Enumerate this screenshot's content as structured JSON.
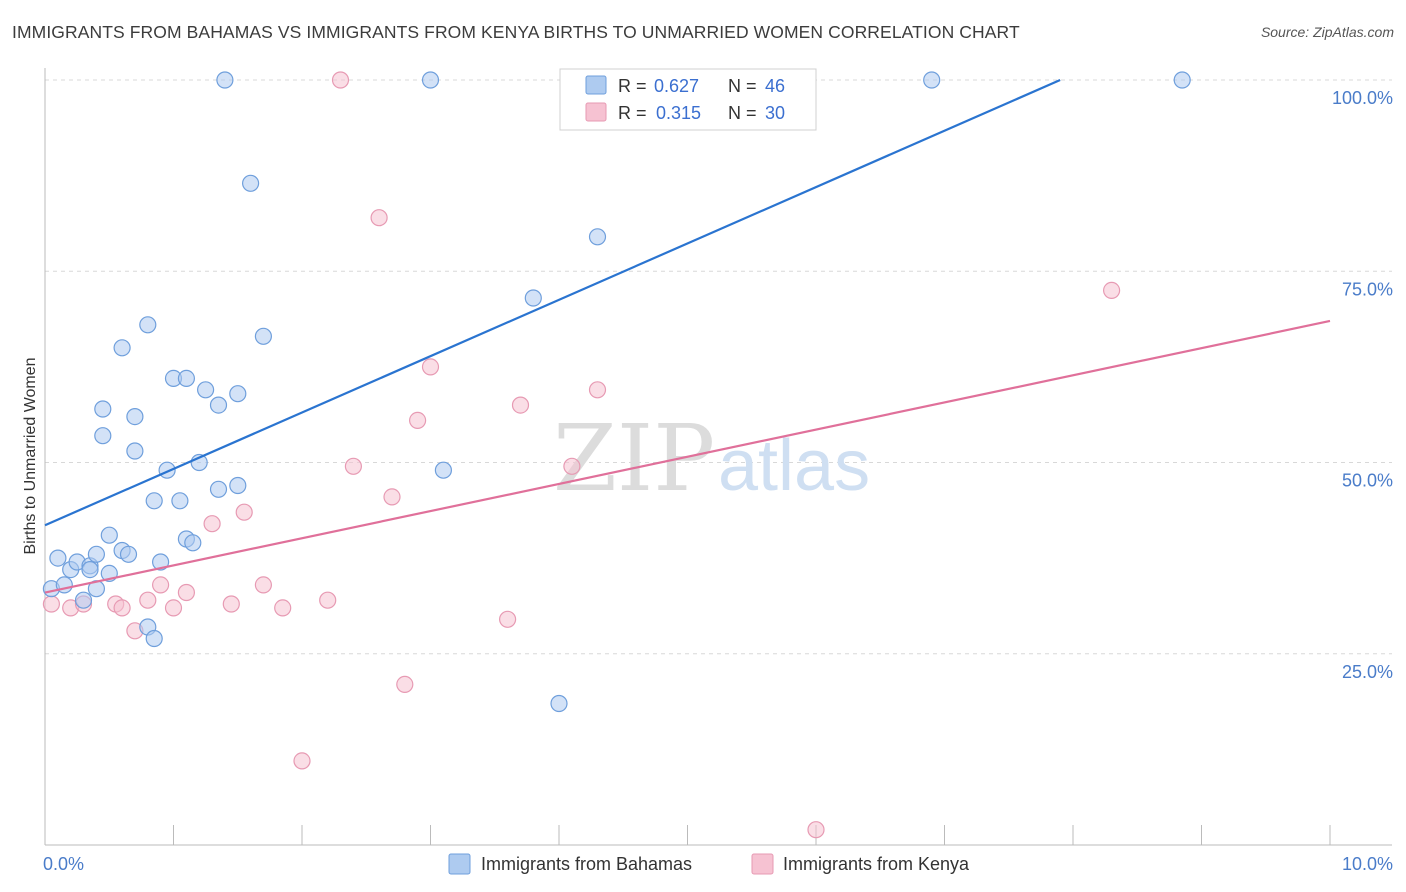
{
  "title": "IMMIGRANTS FROM BAHAMAS VS IMMIGRANTS FROM KENYA BIRTHS TO UNMARRIED WOMEN CORRELATION CHART",
  "source": "Source: ZipAtlas.com",
  "watermark": {
    "zip": "ZIP",
    "atlas": "atlas"
  },
  "colors": {
    "blue_fill": "#aecbf0",
    "blue_stroke": "#6f9fdc",
    "blue_line": "#2a74d0",
    "pink_fill": "#f6c2d2",
    "pink_stroke": "#e79ab3",
    "pink_line": "#e0709a",
    "grid": "#d8d8d8",
    "tick_text": "#4a7cc9"
  },
  "legend": {
    "rows": [
      {
        "r_label": "R =",
        "r_value": "0.627",
        "n_label": "N =",
        "n_value": "46"
      },
      {
        "r_label": "R =",
        "r_value": "0.315",
        "n_label": "N =",
        "n_value": "30"
      }
    ]
  },
  "chart_data": {
    "type": "scatter",
    "title": "IMMIGRANTS FROM BAHAMAS VS IMMIGRANTS FROM KENYA BIRTHS TO UNMARRIED WOMEN CORRELATION CHART",
    "xlabel": "",
    "ylabel": "Births to Unmarried Women",
    "xlim": [
      0,
      10
    ],
    "ylim": [
      0,
      100
    ],
    "x_tick_labels": [
      "0.0%",
      "10.0%"
    ],
    "y_ticks": [
      25,
      50,
      75,
      100
    ],
    "y_tick_labels": [
      "25.0%",
      "50.0%",
      "75.0%",
      "100.0%"
    ],
    "x_minor_ticks": [
      1,
      2,
      3,
      4,
      5,
      6,
      7,
      8,
      9,
      10
    ],
    "grid": true,
    "legend_position": "top-center",
    "series": [
      {
        "name": "Immigrants from Bahamas",
        "color": "blue",
        "R": 0.627,
        "N": 46,
        "trend": {
          "x0": 0.0,
          "y0": 41.8,
          "x1": 7.9,
          "y1": 100.0
        },
        "points": [
          [
            0.05,
            33.5
          ],
          [
            0.1,
            37.5
          ],
          [
            0.15,
            34.0
          ],
          [
            0.2,
            36.0
          ],
          [
            0.25,
            37.0
          ],
          [
            0.3,
            32.0
          ],
          [
            0.35,
            36.5
          ],
          [
            0.35,
            36.0
          ],
          [
            0.4,
            33.5
          ],
          [
            0.4,
            38.0
          ],
          [
            0.45,
            53.5
          ],
          [
            0.45,
            57.0
          ],
          [
            0.5,
            40.5
          ],
          [
            0.5,
            35.5
          ],
          [
            0.6,
            65.0
          ],
          [
            0.6,
            38.5
          ],
          [
            0.65,
            38.0
          ],
          [
            0.7,
            51.5
          ],
          [
            0.7,
            56.0
          ],
          [
            0.8,
            68.0
          ],
          [
            0.8,
            28.5
          ],
          [
            0.85,
            45.0
          ],
          [
            0.85,
            27.0
          ],
          [
            0.9,
            37.0
          ],
          [
            0.95,
            49.0
          ],
          [
            1.0,
            61.0
          ],
          [
            1.05,
            45.0
          ],
          [
            1.1,
            40.0
          ],
          [
            1.1,
            61.0
          ],
          [
            1.15,
            39.5
          ],
          [
            1.2,
            50.0
          ],
          [
            1.25,
            59.5
          ],
          [
            1.35,
            57.5
          ],
          [
            1.35,
            46.5
          ],
          [
            1.4,
            100.0
          ],
          [
            1.5,
            59.0
          ],
          [
            1.5,
            47.0
          ],
          [
            1.6,
            86.5
          ],
          [
            1.7,
            66.5
          ],
          [
            3.0,
            100.0
          ],
          [
            3.1,
            49.0
          ],
          [
            3.8,
            71.5
          ],
          [
            4.0,
            18.5
          ],
          [
            4.3,
            79.5
          ],
          [
            6.9,
            100.0
          ],
          [
            8.85,
            100.0
          ]
        ]
      },
      {
        "name": "Immigrants from Kenya",
        "color": "pink",
        "R": 0.315,
        "N": 30,
        "trend": {
          "x0": 0.0,
          "y0": 33.0,
          "x1": 10.0,
          "y1": 68.5
        },
        "points": [
          [
            0.05,
            31.5
          ],
          [
            0.2,
            31.0
          ],
          [
            0.3,
            31.5
          ],
          [
            0.55,
            31.5
          ],
          [
            0.6,
            31.0
          ],
          [
            0.7,
            28.0
          ],
          [
            0.8,
            32.0
          ],
          [
            0.9,
            34.0
          ],
          [
            1.0,
            31.0
          ],
          [
            1.1,
            33.0
          ],
          [
            1.3,
            42.0
          ],
          [
            1.45,
            31.5
          ],
          [
            1.55,
            43.5
          ],
          [
            1.7,
            34.0
          ],
          [
            1.85,
            31.0
          ],
          [
            2.0,
            11.0
          ],
          [
            2.2,
            32.0
          ],
          [
            2.3,
            100.0
          ],
          [
            2.4,
            49.5
          ],
          [
            2.6,
            82.0
          ],
          [
            2.7,
            45.5
          ],
          [
            2.8,
            21.0
          ],
          [
            2.9,
            55.5
          ],
          [
            3.0,
            62.5
          ],
          [
            3.6,
            29.5
          ],
          [
            3.7,
            57.5
          ],
          [
            4.1,
            49.5
          ],
          [
            4.3,
            59.5
          ],
          [
            6.0,
            2.0
          ],
          [
            8.3,
            72.5
          ]
        ]
      }
    ]
  }
}
